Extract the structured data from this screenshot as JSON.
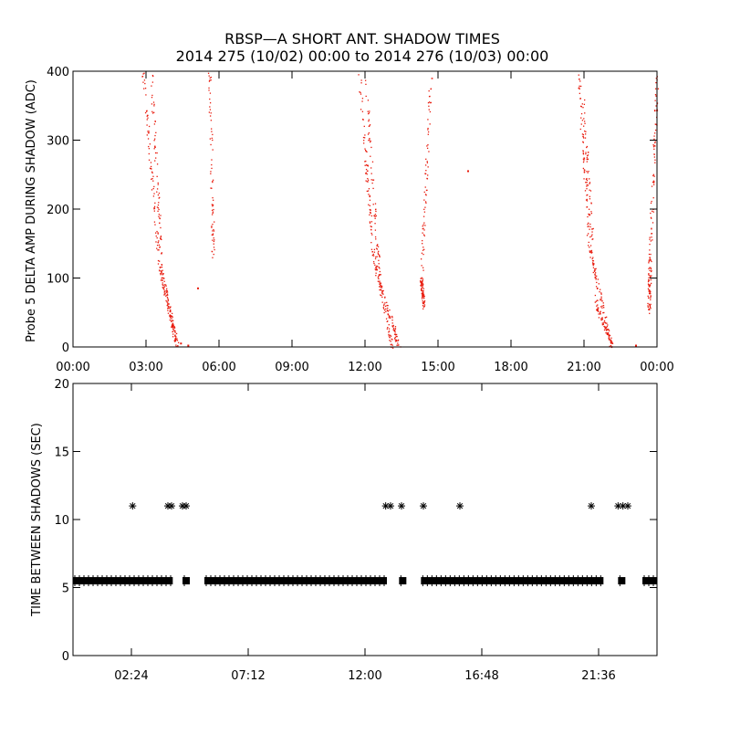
{
  "title_line1": "RBSP—A SHORT ANT. SHADOW TIMES",
  "title_line2": "2014 275 (10/02) 00:00 to 2014 276 (10/03) 00:00",
  "colors": {
    "points_red": "#e8190b",
    "points_black": "#000000",
    "axes": "#000000"
  },
  "chart_data": [
    {
      "type": "scatter",
      "panel": "top",
      "ylabel": "Probe 5 DELTA AMP DURING SHADOW (ADC)",
      "xlim_hours": [
        0,
        24
      ],
      "ylim": [
        0,
        400
      ],
      "xticks": [
        {
          "label": "00:00",
          "hour": 0
        },
        {
          "label": "03:00",
          "hour": 3
        },
        {
          "label": "06:00",
          "hour": 6
        },
        {
          "label": "09:00",
          "hour": 9
        },
        {
          "label": "12:00",
          "hour": 12
        },
        {
          "label": "15:00",
          "hour": 15
        },
        {
          "label": "18:00",
          "hour": 18
        },
        {
          "label": "21:00",
          "hour": 21
        },
        {
          "label": "00:00",
          "hour": 24
        }
      ],
      "yticks": [
        {
          "label": "0",
          "value": 0
        },
        {
          "label": "100",
          "value": 100
        },
        {
          "label": "200",
          "value": 200
        },
        {
          "label": "300",
          "value": 300
        },
        {
          "label": "400",
          "value": 400
        }
      ],
      "series": [
        {
          "color": "#e8190b",
          "segments": [
            {
              "from": [
                2.85,
                400
              ],
              "to": [
                3.5,
                130
              ],
              "end": [
                4.2,
                10
              ]
            },
            {
              "from": [
                3.2,
                400
              ],
              "to": [
                3.65,
                100
              ],
              "end": [
                4.3,
                0
              ]
            },
            {
              "from": [
                5.6,
                400
              ],
              "to": [
                5.75,
                130
              ]
            },
            {
              "from": [
                11.75,
                400
              ],
              "to": [
                12.3,
                140
              ],
              "end": [
                13.1,
                0
              ]
            },
            {
              "from": [
                12.0,
                390
              ],
              "to": [
                12.6,
                90
              ],
              "end": [
                13.4,
                0
              ]
            },
            {
              "from": [
                14.7,
                400
              ],
              "to": [
                14.3,
                100
              ],
              "end": [
                14.4,
                60
              ]
            },
            {
              "from": [
                20.75,
                400
              ],
              "to": [
                21.2,
                150
              ],
              "end": [
                22.1,
                0
              ]
            },
            {
              "from": [
                20.95,
                360
              ],
              "to": [
                21.5,
                60
              ],
              "end": [
                22.2,
                0
              ]
            },
            {
              "from": [
                24.0,
                400
              ],
              "to": [
                23.7,
                130
              ],
              "end": [
                23.65,
                50
              ]
            }
          ],
          "isolated": [
            [
              3.95,
              45
            ],
            [
              4.05,
              30
            ],
            [
              4.4,
              5
            ],
            [
              4.7,
              2
            ],
            [
              5.1,
              85
            ],
            [
              16.2,
              255
            ],
            [
              23.1,
              2
            ]
          ]
        }
      ]
    },
    {
      "type": "scatter",
      "panel": "bottom",
      "ylabel": "TIME BETWEEN SHADOWS (SEC)",
      "xlim_hours": [
        0,
        24
      ],
      "ylim": [
        0,
        20
      ],
      "xticks": [
        {
          "label": "02:24",
          "hour": 2.4
        },
        {
          "label": "07:12",
          "hour": 7.2
        },
        {
          "label": "12:00",
          "hour": 12.0
        },
        {
          "label": "16:48",
          "hour": 16.8
        },
        {
          "label": "21:36",
          "hour": 21.6
        }
      ],
      "yticks": [
        {
          "label": "0",
          "value": 0
        },
        {
          "label": "5",
          "value": 5
        },
        {
          "label": "10",
          "value": 10
        },
        {
          "label": "15",
          "value": 15
        },
        {
          "label": "20",
          "value": 20
        }
      ],
      "series": [
        {
          "color": "#000000",
          "marker": "asterisk",
          "baseline_value": 5.5,
          "baseline_ranges": [
            [
              0,
              4.1
            ],
            [
              4.5,
              4.8
            ],
            [
              5.4,
              12.9
            ],
            [
              13.4,
              13.7
            ],
            [
              14.3,
              21.8
            ],
            [
              22.4,
              22.7
            ],
            [
              23.4,
              24
            ]
          ],
          "points": [
            {
              "x": 2.45,
              "y": 11
            },
            {
              "x": 3.9,
              "y": 11
            },
            {
              "x": 4.05,
              "y": 11
            },
            {
              "x": 4.5,
              "y": 11
            },
            {
              "x": 4.65,
              "y": 11
            },
            {
              "x": 12.85,
              "y": 11
            },
            {
              "x": 13.05,
              "y": 11
            },
            {
              "x": 13.5,
              "y": 11
            },
            {
              "x": 14.4,
              "y": 11
            },
            {
              "x": 15.9,
              "y": 11
            },
            {
              "x": 21.3,
              "y": 11
            },
            {
              "x": 22.4,
              "y": 11
            },
            {
              "x": 22.6,
              "y": 11
            },
            {
              "x": 22.8,
              "y": 11
            }
          ]
        }
      ]
    }
  ]
}
